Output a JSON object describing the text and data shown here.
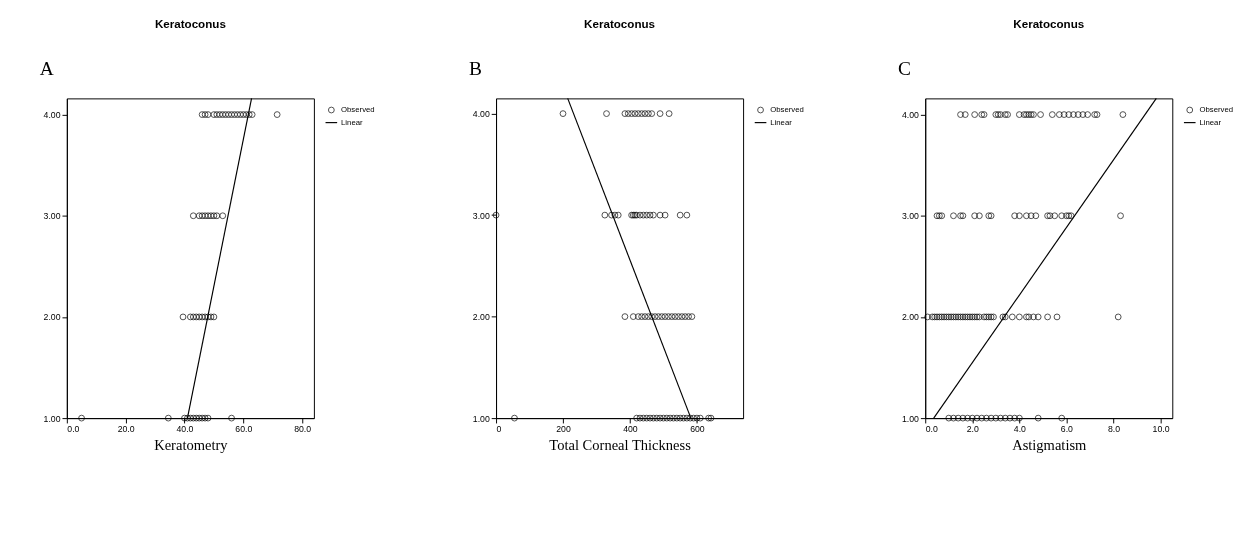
{
  "chart_data": [
    {
      "type": "scatter",
      "title": "Keratoconus",
      "xlabel": "Keratometry",
      "annotations": [
        "A"
      ],
      "legend": "top right",
      "grid": false,
      "xlim": [
        0,
        84
      ],
      "xticks": [
        {
          "value": 0,
          "label": "0.0"
        },
        {
          "value": 20,
          "label": "20.0"
        },
        {
          "value": 40,
          "label": "40.0"
        },
        {
          "value": 60,
          "label": "60.0"
        },
        {
          "value": 80,
          "label": "80.0"
        }
      ],
      "ylim": [
        1,
        4.16
      ],
      "yticks": [
        {
          "value": 1,
          "label": "1.00"
        },
        {
          "value": 2,
          "label": "2.00"
        },
        {
          "value": 3,
          "label": "3.00"
        },
        {
          "value": 4,
          "label": "4.00"
        }
      ],
      "series": [
        {
          "name": "Observed",
          "type": "scatter",
          "marker": "circle",
          "color": "#000000",
          "x": [
            46,
            47,
            48,
            50,
            51,
            52,
            53,
            54,
            55,
            56,
            57,
            58,
            59,
            60,
            61,
            62,
            63,
            71.5,
            43,
            45,
            46,
            47,
            48,
            49,
            50,
            51,
            53,
            39.5,
            42,
            43,
            44,
            45,
            46,
            47,
            48,
            49,
            50,
            5,
            34.5,
            40,
            41,
            42,
            43,
            44,
            45,
            46,
            47,
            48,
            56
          ],
          "values": [
            4,
            4,
            4,
            4,
            4,
            4,
            4,
            4,
            4,
            4,
            4,
            4,
            4,
            4,
            4,
            4,
            4,
            4,
            3,
            3,
            3,
            3,
            3,
            3,
            3,
            3,
            3,
            2,
            2,
            2,
            2,
            2,
            2,
            2,
            2,
            2,
            2,
            1,
            1,
            1,
            1,
            1,
            1,
            1,
            1,
            1,
            1,
            1,
            1
          ]
        },
        {
          "name": "Linear",
          "type": "line",
          "marker": "none",
          "color": "#000000",
          "x": [
            41,
            62.8
          ],
          "values": [
            1,
            4.16
          ]
        }
      ]
    },
    {
      "type": "scatter",
      "title": "Keratoconus",
      "xlabel": "Total Corneal Thickness",
      "annotations": [
        "B"
      ],
      "legend": "top right",
      "grid": false,
      "xlim": [
        0,
        738
      ],
      "xticks": [
        0,
        200,
        400,
        600
      ],
      "ylim": [
        1,
        4.15
      ],
      "yticks": [
        {
          "value": 1,
          "label": "1.00"
        },
        {
          "value": 2,
          "label": "2.00"
        },
        {
          "value": 3,
          "label": "3.00"
        },
        {
          "value": 4,
          "label": "4.00"
        }
      ],
      "series": [
        {
          "name": "Observed",
          "type": "scatter",
          "marker": "circle",
          "color": "#000000",
          "x": [
            200,
            330,
            385,
            395,
            405,
            415,
            425,
            435,
            445,
            455,
            465,
            490,
            517,
            0,
            325,
            345,
            355,
            365,
            405,
            410,
            415,
            420,
            430,
            440,
            450,
            460,
            470,
            490,
            505,
            550,
            570,
            385,
            410,
            425,
            435,
            445,
            455,
            465,
            475,
            485,
            495,
            505,
            515,
            525,
            535,
            545,
            555,
            565,
            575,
            585,
            55,
            420,
            430,
            440,
            450,
            460,
            470,
            480,
            490,
            500,
            510,
            520,
            530,
            540,
            550,
            560,
            570,
            580,
            590,
            600,
            610,
            635,
            642
          ],
          "values": [
            4,
            4,
            4,
            4,
            4,
            4,
            4,
            4,
            4,
            4,
            4,
            4,
            4,
            3,
            3,
            3,
            3,
            3,
            3,
            3,
            3,
            3,
            3,
            3,
            3,
            3,
            3,
            3,
            3,
            3,
            3,
            2,
            2,
            2,
            2,
            2,
            2,
            2,
            2,
            2,
            2,
            2,
            2,
            2,
            2,
            2,
            2,
            2,
            2,
            2,
            1,
            1,
            1,
            1,
            1,
            1,
            1,
            1,
            1,
            1,
            1,
            1,
            1,
            1,
            1,
            1,
            1,
            1,
            1,
            1,
            1,
            1,
            1
          ]
        },
        {
          "name": "Linear",
          "type": "line",
          "marker": "none",
          "color": "#000000",
          "x": [
            214,
            582
          ],
          "values": [
            4.15,
            1
          ]
        }
      ]
    },
    {
      "type": "scatter",
      "title": "Keratoconus",
      "xlabel": "Astigmatism",
      "annotations": [
        "C"
      ],
      "legend": "top right",
      "grid": false,
      "xlim": [
        0,
        10.5
      ],
      "xticks": [
        {
          "value": 0,
          "label": "0.0"
        },
        {
          "value": 2,
          "label": "2.0"
        },
        {
          "value": 4,
          "label": "4.0"
        },
        {
          "value": 6,
          "label": "6.0"
        },
        {
          "value": 8,
          "label": "8.0"
        },
        {
          "value": 10,
          "label": "10.0"
        }
      ],
      "ylim": [
        1,
        4.16
      ],
      "yticks": [
        {
          "value": 1,
          "label": "1.00"
        },
        {
          "value": 2,
          "label": "2.00"
        },
        {
          "value": 3,
          "label": "3.00"
        },
        {
          "value": 4,
          "label": "4.00"
        }
      ],
      "series": [
        {
          "name": "Observed",
          "type": "scatter",
          "marker": "circle",
          "color": "#000000",
          "x": [
            1.5,
            1.7,
            2.1,
            2.4,
            2.5,
            3.0,
            3.1,
            3.2,
            3.4,
            3.5,
            4.0,
            4.2,
            4.3,
            4.4,
            4.5,
            4.6,
            4.9,
            5.4,
            5.7,
            5.9,
            6.1,
            6.3,
            6.5,
            6.7,
            6.9,
            7.2,
            7.3,
            8.4,
            0.5,
            0.6,
            0.7,
            1.2,
            1.5,
            1.6,
            2.1,
            2.3,
            2.7,
            2.8,
            3.8,
            4.0,
            4.3,
            4.5,
            4.7,
            5.2,
            5.3,
            5.5,
            5.8,
            6.0,
            6.1,
            6.2,
            8.3,
            0.1,
            0.3,
            0.4,
            0.5,
            0.6,
            0.7,
            0.8,
            0.9,
            1.0,
            1.1,
            1.2,
            1.3,
            1.4,
            1.5,
            1.6,
            1.7,
            1.8,
            1.9,
            2.0,
            2.1,
            2.2,
            2.3,
            2.5,
            2.6,
            2.7,
            2.8,
            2.9,
            3.3,
            3.4,
            3.7,
            4.0,
            4.3,
            4.4,
            4.6,
            4.8,
            5.2,
            5.6,
            8.2,
            1.0,
            1.2,
            1.4,
            1.6,
            1.8,
            2.0,
            2.2,
            2.4,
            2.6,
            2.8,
            3.0,
            3.2,
            3.4,
            3.6,
            3.8,
            4.0,
            4.8,
            5.8
          ],
          "values": [
            4,
            4,
            4,
            4,
            4,
            4,
            4,
            4,
            4,
            4,
            4,
            4,
            4,
            4,
            4,
            4,
            4,
            4,
            4,
            4,
            4,
            4,
            4,
            4,
            4,
            4,
            4,
            4,
            3,
            3,
            3,
            3,
            3,
            3,
            3,
            3,
            3,
            3,
            3,
            3,
            3,
            3,
            3,
            3,
            3,
            3,
            3,
            3,
            3,
            3,
            3,
            2,
            2,
            2,
            2,
            2,
            2,
            2,
            2,
            2,
            2,
            2,
            2,
            2,
            2,
            2,
            2,
            2,
            2,
            2,
            2,
            2,
            2,
            2,
            2,
            2,
            2,
            2,
            2,
            2,
            2,
            2,
            2,
            2,
            2,
            2,
            2,
            2,
            2,
            1,
            1,
            1,
            1,
            1,
            1,
            1,
            1,
            1,
            1,
            1,
            1,
            1,
            1,
            1,
            1,
            1,
            1
          ]
        },
        {
          "name": "Linear",
          "type": "line",
          "marker": "none",
          "color": "#000000",
          "x": [
            0.36,
            9.82
          ],
          "values": [
            1,
            4.16
          ]
        }
      ]
    }
  ]
}
